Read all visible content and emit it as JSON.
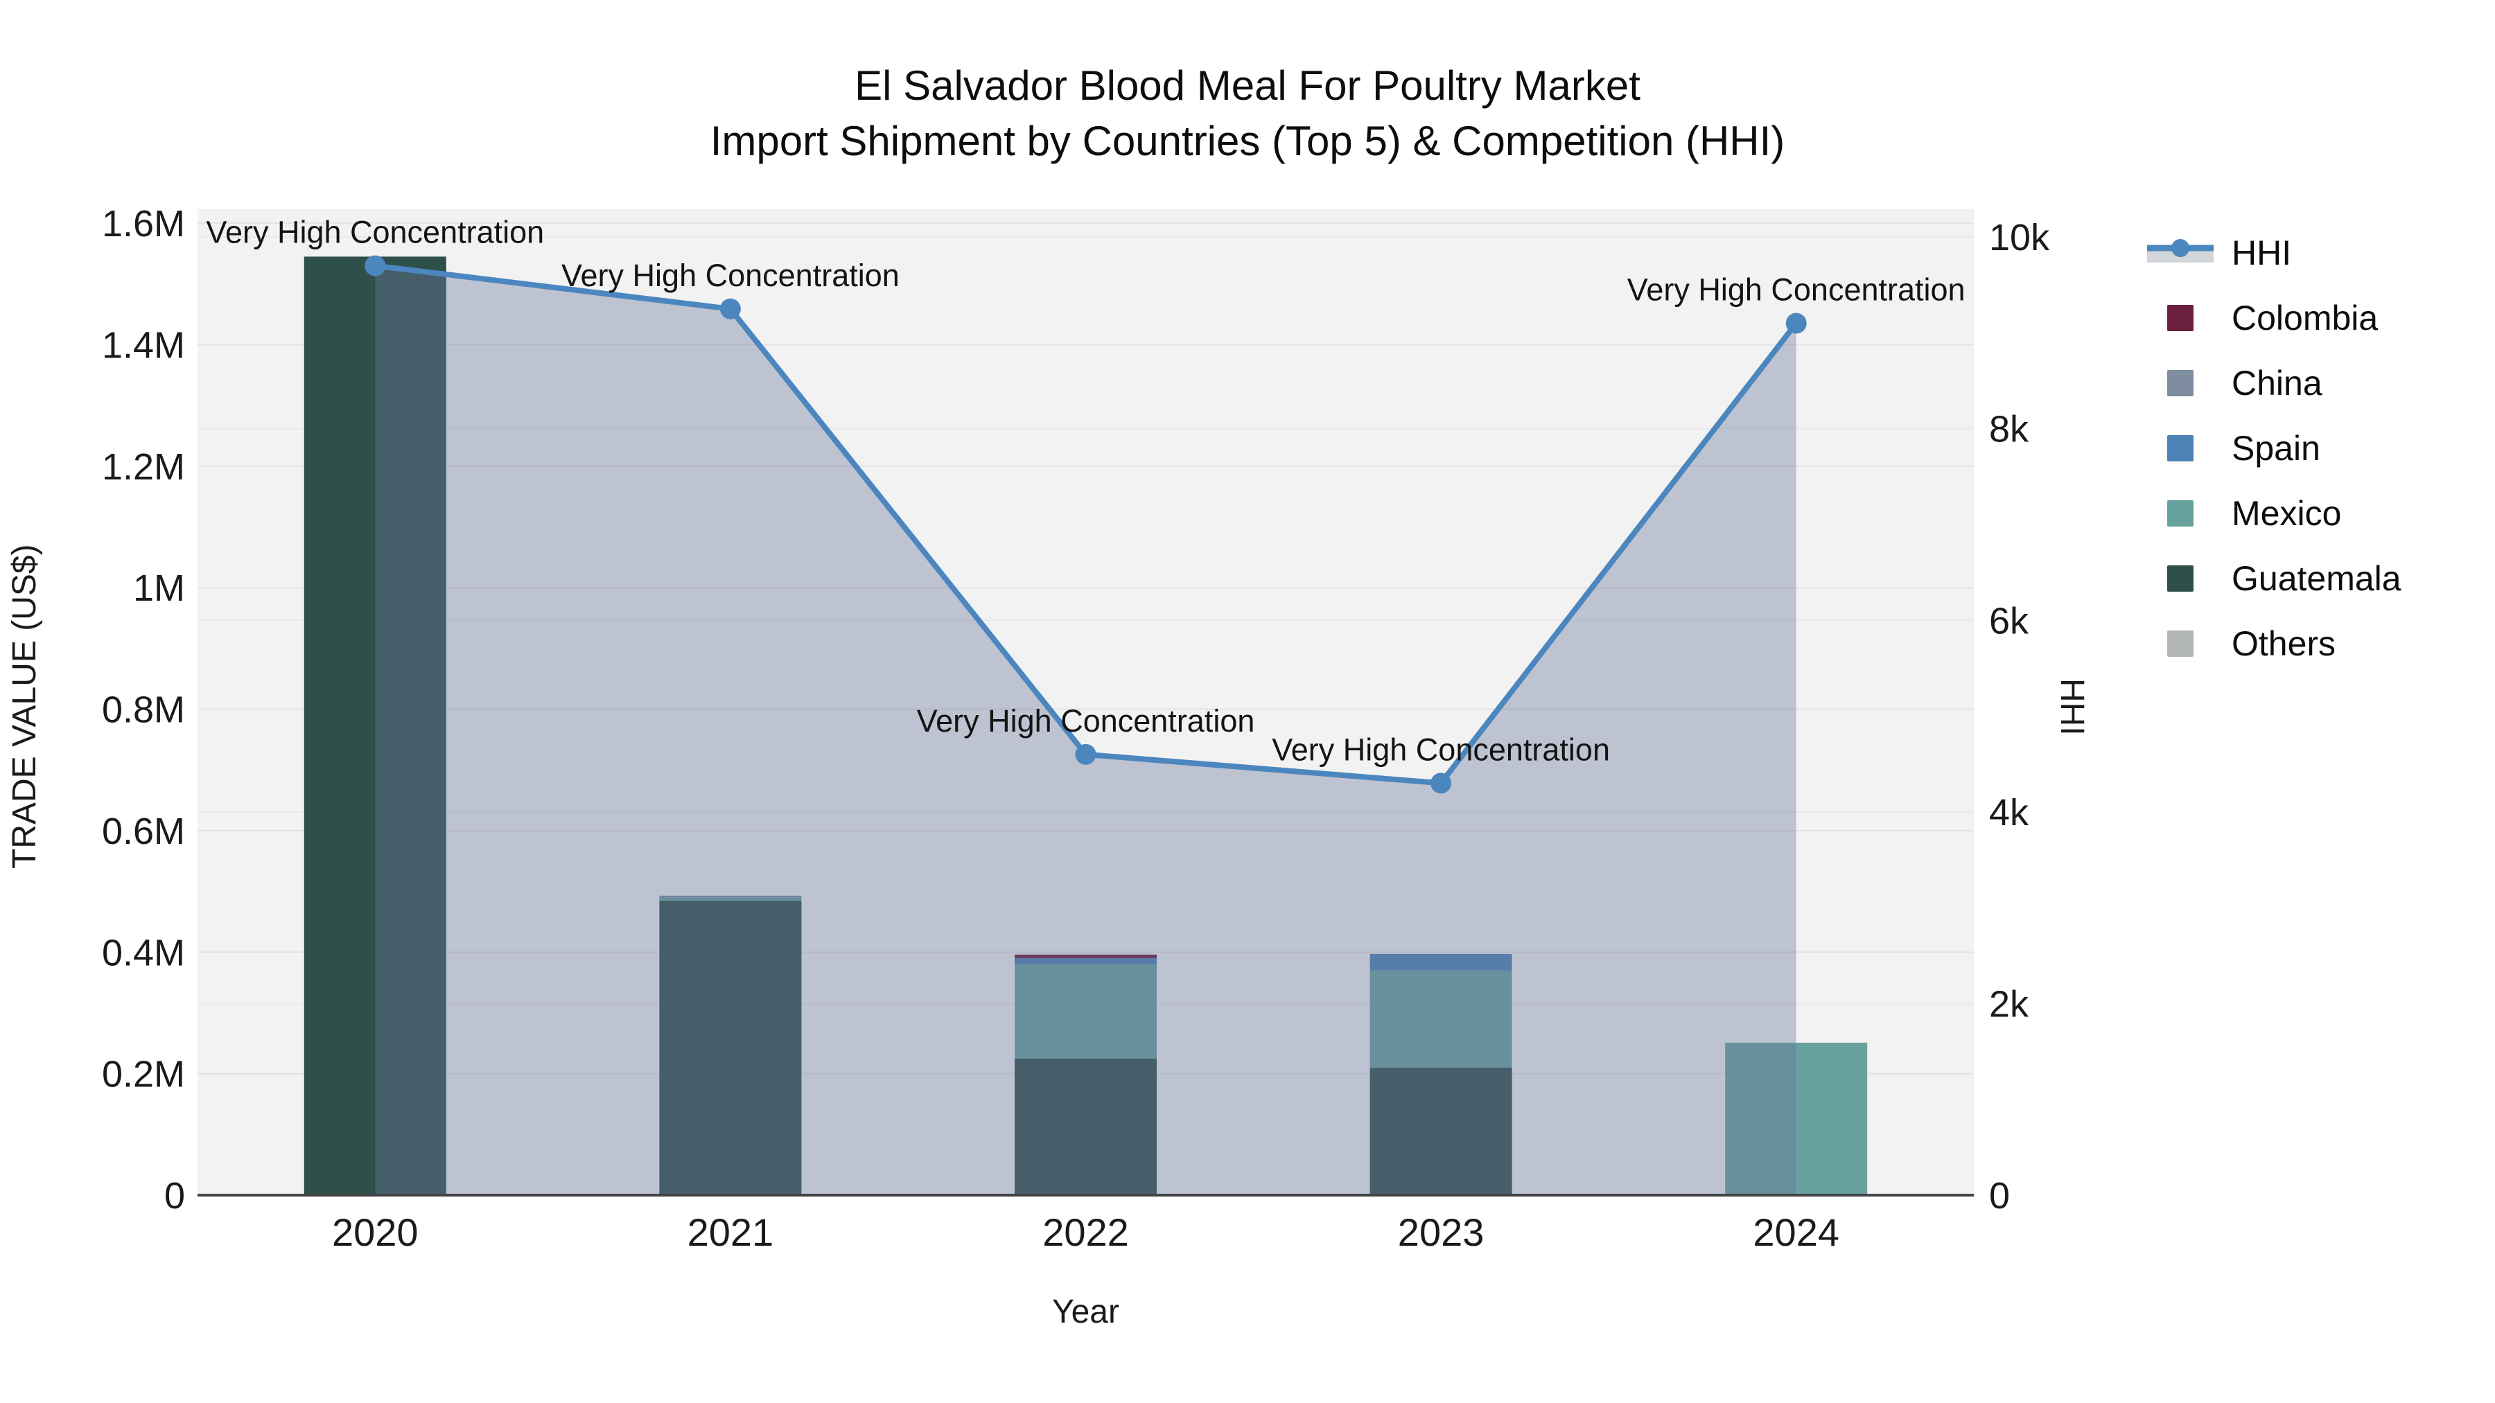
{
  "title": {
    "line1": "El Salvador Blood Meal For Poultry Market",
    "line2": "Import Shipment by Countries (Top 5) & Competition (HHI)"
  },
  "chart_data": {
    "type": "bar",
    "subtype": "stacked-bars-with-line-overlay-dual-axis",
    "title": "El Salvador Blood Meal For Poultry Market Import Shipment by Countries (Top 5) & Competition (HHI)",
    "xlabel": "Year",
    "ylabel": "TRADE VALUE (US$)",
    "ylabel_right": "HHI",
    "categories": [
      "2020",
      "2021",
      "2022",
      "2023",
      "2024"
    ],
    "series": [
      {
        "name": "Guatemala",
        "color": "#2F4F4B",
        "values": [
          1545000,
          485000,
          225000,
          210000,
          0
        ]
      },
      {
        "name": "Mexico",
        "color": "#68A29E",
        "values": [
          0,
          5000,
          155000,
          160000,
          251000
        ]
      },
      {
        "name": "Spain",
        "color": "#4D82B6",
        "values": [
          0,
          0,
          10000,
          27000,
          0
        ]
      },
      {
        "name": "China",
        "color": "#7E8DA0",
        "values": [
          0,
          3000,
          0,
          0,
          0
        ]
      },
      {
        "name": "Colombia",
        "color": "#6B1F3F",
        "values": [
          0,
          0,
          6000,
          0,
          0
        ]
      },
      {
        "name": "Others",
        "color": "#B3B6B6",
        "values": [
          0,
          0,
          0,
          0,
          0
        ]
      }
    ],
    "bar_totals": [
      1545000,
      493000,
      396000,
      397000,
      251000
    ],
    "line_series": {
      "name": "HHI",
      "axis": "right",
      "color": "#4B87BE",
      "fill": "rgba(106,119,154,0.38)",
      "values": [
        9700,
        9250,
        4600,
        4300,
        9100
      ]
    },
    "annotations": [
      {
        "text": "Very High Concentration",
        "category": "2020",
        "hhi": 9700
      },
      {
        "text": "Very High Concentration",
        "category": "2021",
        "hhi": 9250
      },
      {
        "text": "Very High Concentration",
        "category": "2022",
        "hhi": 4600
      },
      {
        "text": "Very High Concentration",
        "category": "2023",
        "hhi": 4300
      },
      {
        "text": "Very High Concentration",
        "category": "2024",
        "hhi": 9100
      }
    ],
    "yticks_left": {
      "labels": [
        "0",
        "0.2M",
        "0.4M",
        "0.6M",
        "0.8M",
        "1M",
        "1.2M",
        "1.4M",
        "1.6M"
      ],
      "values": [
        0,
        200000,
        400000,
        600000,
        800000,
        1000000,
        1200000,
        1400000,
        1600000
      ]
    },
    "yticks_right": {
      "labels": [
        "0",
        "2k",
        "4k",
        "6k",
        "8k",
        "10k"
      ],
      "values": [
        0,
        2000,
        4000,
        6000,
        8000,
        10000
      ]
    },
    "ylim_left": [
      0,
      1623000
    ],
    "ylim_right": [
      0,
      10290
    ],
    "grid": true,
    "plot_bg": "#F2F2F2",
    "grid_color_left": "#E3E3E3",
    "grid_color_right": "#E9E9E9",
    "axis_line_color": "#444444",
    "legend_position": "right"
  },
  "legend": {
    "items": [
      {
        "label": "HHI",
        "glyph": "line-marker",
        "color": "#4B87BE",
        "band": "#D2D5D9"
      },
      {
        "label": "Colombia",
        "glyph": "swatch",
        "color": "#6B1F3F"
      },
      {
        "label": "China",
        "glyph": "swatch",
        "color": "#7E8DA0"
      },
      {
        "label": "Spain",
        "glyph": "swatch",
        "color": "#4D82B6"
      },
      {
        "label": "Mexico",
        "glyph": "swatch",
        "color": "#68A29E"
      },
      {
        "label": "Guatemala",
        "glyph": "swatch",
        "color": "#2F4F4B"
      },
      {
        "label": "Others",
        "glyph": "swatch",
        "color": "#B3B6B6"
      }
    ]
  }
}
